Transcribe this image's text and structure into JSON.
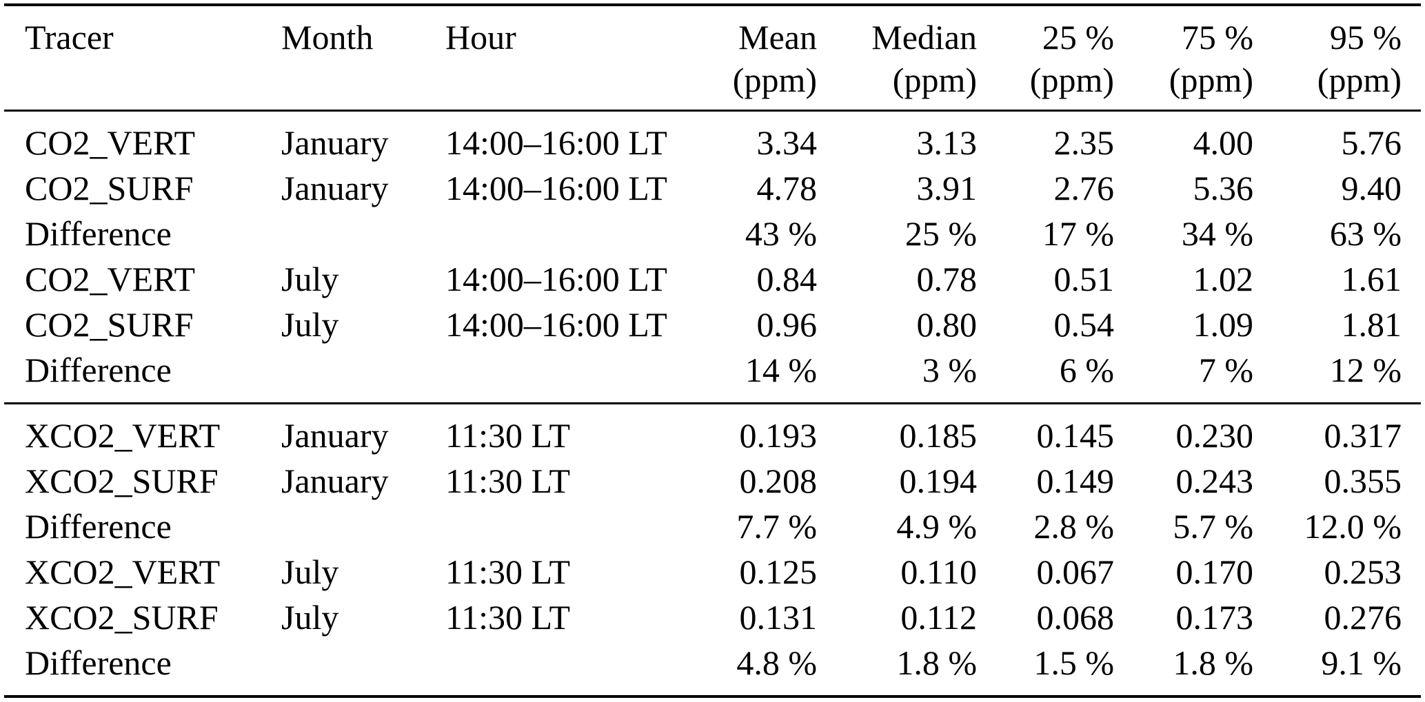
{
  "colors": {
    "background": "#ffffff",
    "text": "#000000",
    "rule": "#000000"
  },
  "table": {
    "columns": [
      {
        "id": "tracer",
        "label": "Tracer",
        "unit": ""
      },
      {
        "id": "month",
        "label": "Month",
        "unit": ""
      },
      {
        "id": "hour",
        "label": "Hour",
        "unit": ""
      },
      {
        "id": "mean",
        "label": "Mean",
        "unit": "(ppm)"
      },
      {
        "id": "median",
        "label": "Median",
        "unit": "(ppm)"
      },
      {
        "id": "p25",
        "label": "25 %",
        "unit": "(ppm)"
      },
      {
        "id": "p75",
        "label": "75 %",
        "unit": "(ppm)"
      },
      {
        "id": "p95",
        "label": "95 %",
        "unit": "(ppm)"
      }
    ],
    "sections": [
      {
        "name": "co2",
        "rows": [
          [
            "CO2_VERT",
            "January",
            "14:00–16:00 LT",
            "3.34",
            "3.13",
            "2.35",
            "4.00",
            "5.76"
          ],
          [
            "CO2_SURF",
            "January",
            "14:00–16:00 LT",
            "4.78",
            "3.91",
            "2.76",
            "5.36",
            "9.40"
          ],
          [
            "Difference",
            "",
            "",
            "43 %",
            "25 %",
            "17 %",
            "34 %",
            "63 %"
          ],
          [
            "CO2_VERT",
            "July",
            "14:00–16:00 LT",
            "0.84",
            "0.78",
            "0.51",
            "1.02",
            "1.61"
          ],
          [
            "CO2_SURF",
            "July",
            "14:00–16:00 LT",
            "0.96",
            "0.80",
            "0.54",
            "1.09",
            "1.81"
          ],
          [
            "Difference",
            "",
            "",
            "14 %",
            "3 %",
            "6 %",
            "7 %",
            "12 %"
          ]
        ]
      },
      {
        "name": "xco2",
        "rows": [
          [
            "XCO2_VERT",
            "January",
            "11:30 LT",
            "0.193",
            "0.185",
            "0.145",
            "0.230",
            "0.317"
          ],
          [
            "XCO2_SURF",
            "January",
            "11:30 LT",
            "0.208",
            "0.194",
            "0.149",
            "0.243",
            "0.355"
          ],
          [
            "Difference",
            "",
            "",
            "7.7 %",
            "4.9 %",
            "2.8 %",
            "5.7 %",
            "12.0 %"
          ],
          [
            "XCO2_VERT",
            "July",
            "11:30 LT",
            "0.125",
            "0.110",
            "0.067",
            "0.170",
            "0.253"
          ],
          [
            "XCO2_SURF",
            "July",
            "11:30 LT",
            "0.131",
            "0.112",
            "0.068",
            "0.173",
            "0.276"
          ],
          [
            "Difference",
            "",
            "",
            "4.8 %",
            "1.8 %",
            "1.5 %",
            "1.8 %",
            "9.1 %"
          ]
        ]
      }
    ]
  }
}
